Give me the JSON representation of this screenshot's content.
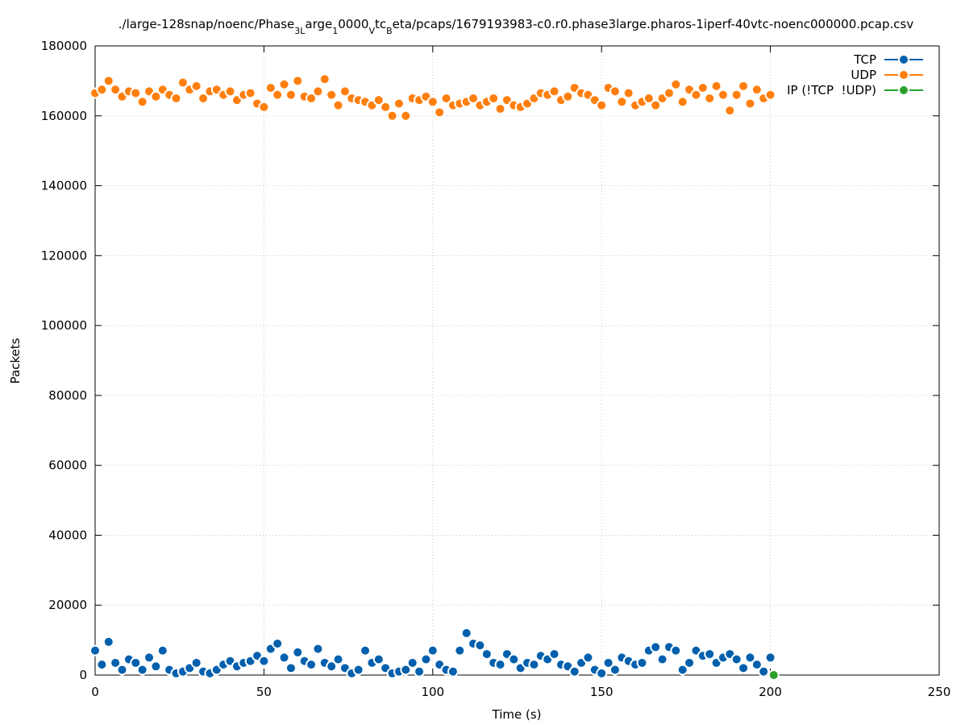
{
  "chart_data": {
    "type": "scatter",
    "title": [
      "./large-128snap/noenc/Phase",
      "3L",
      "arge",
      "1",
      "0000",
      "V",
      "tc",
      "B",
      "eta/pcaps/1679193983-c0.r0.phase3large.pharos-1iperf-40vtc-noenc000000.pcap.csv"
    ],
    "x_label": "Time (s)",
    "y_label": "Packets",
    "xlim": [
      0,
      250
    ],
    "xticks": [
      0,
      50,
      100,
      150,
      200,
      250
    ],
    "ylim": [
      0,
      180000
    ],
    "yticks": [
      0,
      20000,
      40000,
      60000,
      80000,
      100000,
      120000,
      140000,
      160000,
      180000
    ],
    "grid": true,
    "legend": "top-right",
    "series": [
      {
        "name": "TCP",
        "color": "#0060ad",
        "x": [
          0,
          2,
          4,
          6,
          8,
          10,
          12,
          14,
          16,
          18,
          20,
          22,
          24,
          26,
          28,
          30,
          32,
          34,
          36,
          38,
          40,
          42,
          44,
          46,
          48,
          50,
          52,
          54,
          56,
          58,
          60,
          62,
          64,
          66,
          68,
          70,
          72,
          74,
          76,
          78,
          80,
          82,
          84,
          86,
          88,
          90,
          92,
          94,
          96,
          98,
          100,
          102,
          104,
          106,
          108,
          110,
          112,
          114,
          116,
          118,
          120,
          122,
          124,
          126,
          128,
          130,
          132,
          134,
          136,
          138,
          140,
          142,
          144,
          146,
          148,
          150,
          152,
          154,
          156,
          158,
          160,
          162,
          164,
          166,
          168,
          170,
          172,
          174,
          176,
          178,
          180,
          182,
          184,
          186,
          188,
          190,
          192,
          194,
          196,
          198,
          200
        ],
        "values": [
          7000,
          3000,
          9500,
          3500,
          1500,
          4500,
          3500,
          1500,
          5000,
          2500,
          7000,
          1500,
          500,
          1000,
          2000,
          3500,
          1000,
          500,
          1500,
          3000,
          4000,
          2500,
          3500,
          4000,
          5500,
          4000,
          7500,
          9000,
          5000,
          2000,
          6500,
          4000,
          3000,
          7500,
          3500,
          2500,
          4500,
          2000,
          500,
          1500,
          7000,
          3500,
          4500,
          2000,
          500,
          1000,
          1500,
          3500,
          1000,
          4500,
          7000,
          3000,
          1500,
          1000,
          7000,
          12000,
          9000,
          8500,
          6000,
          3500,
          3000,
          6000,
          4500,
          2000,
          3500,
          3000,
          5500,
          4500,
          6000,
          3000,
          2500,
          1000,
          3500,
          5000,
          1500,
          500,
          3500,
          1500,
          5000,
          4000,
          3000,
          3500,
          7000,
          8000,
          4500,
          8000,
          7000,
          1500,
          3500,
          7000,
          5500,
          6000,
          3500,
          5000,
          6000,
          4500,
          2000,
          5000,
          3000,
          1000,
          5000
        ]
      },
      {
        "name": "UDP",
        "color": "#ff7f0e",
        "x": [
          0,
          2,
          4,
          6,
          8,
          10,
          12,
          14,
          16,
          18,
          20,
          22,
          24,
          26,
          28,
          30,
          32,
          34,
          36,
          38,
          40,
          42,
          44,
          46,
          48,
          50,
          52,
          54,
          56,
          58,
          60,
          62,
          64,
          66,
          68,
          70,
          72,
          74,
          76,
          78,
          80,
          82,
          84,
          86,
          88,
          90,
          92,
          94,
          96,
          98,
          100,
          102,
          104,
          106,
          108,
          110,
          112,
          114,
          116,
          118,
          120,
          122,
          124,
          126,
          128,
          130,
          132,
          134,
          136,
          138,
          140,
          142,
          144,
          146,
          148,
          150,
          152,
          154,
          156,
          158,
          160,
          162,
          164,
          166,
          168,
          170,
          172,
          174,
          176,
          178,
          180,
          182,
          184,
          186,
          188,
          190,
          192,
          194,
          196,
          198,
          200
        ],
        "values": [
          166500,
          167500,
          170000,
          167500,
          165500,
          167000,
          166500,
          164000,
          167000,
          165500,
          167500,
          166000,
          165000,
          169500,
          167500,
          168500,
          165000,
          167000,
          167500,
          166000,
          167000,
          164500,
          166000,
          166500,
          163500,
          162500,
          168000,
          166000,
          169000,
          166000,
          170000,
          165500,
          165000,
          167000,
          170500,
          166000,
          163000,
          167000,
          165000,
          164500,
          164000,
          163000,
          164500,
          162500,
          160000,
          163500,
          160000,
          165000,
          164500,
          165500,
          164000,
          161000,
          165000,
          163000,
          163500,
          164000,
          165000,
          163000,
          164000,
          165000,
          162000,
          164500,
          163000,
          162500,
          163500,
          165000,
          166500,
          166000,
          167000,
          164500,
          165500,
          168000,
          166500,
          166000,
          164500,
          163000,
          168000,
          167000,
          164000,
          166500,
          163000,
          164000,
          165000,
          163000,
          165000,
          166500,
          169000,
          164000,
          167500,
          166000,
          168000,
          165000,
          168500,
          166000,
          161500,
          166000,
          168500,
          163500,
          167500,
          165000,
          166000
        ]
      },
      {
        "name": "IP (!TCP  !UDP)",
        "color": "#2ca02c",
        "x": [
          201
        ],
        "values": [
          0
        ]
      }
    ]
  }
}
